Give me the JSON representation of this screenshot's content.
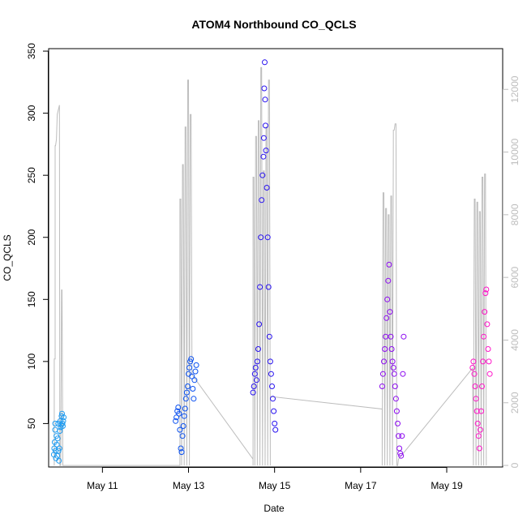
{
  "chart_data": {
    "type": "scatter",
    "title": "ATOM4 Northbound CO_QCLS",
    "xlabel": "Date",
    "ylabel": "CO_QCLS",
    "x_ticks": [
      "May 11",
      "May 13",
      "May 15",
      "May 17",
      "May 19"
    ],
    "x_tick_days": [
      11,
      13,
      15,
      17,
      19
    ],
    "xlim": [
      9.75,
      20.3
    ],
    "ylim": [
      15,
      352
    ],
    "y_ticks": [
      50,
      100,
      150,
      200,
      250,
      300,
      350
    ],
    "y2lim": [
      -50,
      13300
    ],
    "y2_ticks": [
      0,
      2000,
      4000,
      6000,
      8000,
      10000,
      12000
    ],
    "colors": {
      "flight1": "#1e9bf0",
      "flight2": "#0a50f0",
      "flight3": "#2812f0",
      "flight4": "#8c0af0",
      "flight5": "#ff14c8",
      "altitude": "#bdbdbd"
    },
    "series": [
      {
        "flight": 1,
        "color_key": "flight1",
        "points": [
          [
            9.87,
            25
          ],
          [
            9.88,
            30
          ],
          [
            9.89,
            35
          ],
          [
            9.9,
            45
          ],
          [
            9.9,
            50
          ],
          [
            9.91,
            28
          ],
          [
            9.92,
            22
          ],
          [
            9.93,
            40
          ],
          [
            9.94,
            33
          ],
          [
            9.95,
            24
          ],
          [
            9.96,
            38
          ],
          [
            9.97,
            50
          ],
          [
            9.98,
            28
          ],
          [
            9.99,
            20
          ],
          [
            10.0,
            30
          ],
          [
            10.01,
            44
          ],
          [
            10.02,
            52
          ],
          [
            10.03,
            47
          ],
          [
            10.04,
            49
          ],
          [
            10.05,
            56
          ],
          [
            10.06,
            58
          ],
          [
            10.07,
            50
          ],
          [
            10.08,
            48
          ],
          [
            10.09,
            52
          ],
          [
            10.1,
            55
          ]
        ]
      },
      {
        "flight": 2,
        "color_key": "flight2",
        "points": [
          [
            12.7,
            52
          ],
          [
            12.72,
            55
          ],
          [
            12.74,
            60
          ],
          [
            12.76,
            63
          ],
          [
            12.78,
            58
          ],
          [
            12.8,
            45
          ],
          [
            12.82,
            30
          ],
          [
            12.84,
            27
          ],
          [
            12.86,
            40
          ],
          [
            12.88,
            48
          ],
          [
            12.9,
            56
          ],
          [
            12.92,
            62
          ],
          [
            12.94,
            70
          ],
          [
            12.96,
            75
          ],
          [
            12.98,
            80
          ],
          [
            13.0,
            90
          ],
          [
            13.02,
            95
          ],
          [
            13.04,
            100
          ],
          [
            13.06,
            102
          ],
          [
            13.08,
            88
          ],
          [
            13.1,
            78
          ],
          [
            13.12,
            70
          ],
          [
            13.14,
            85
          ],
          [
            13.16,
            92
          ],
          [
            13.18,
            97
          ]
        ]
      },
      {
        "flight": 3,
        "color_key": "flight3",
        "points": [
          [
            14.5,
            75
          ],
          [
            14.52,
            80
          ],
          [
            14.54,
            90
          ],
          [
            14.56,
            95
          ],
          [
            14.58,
            85
          ],
          [
            14.6,
            100
          ],
          [
            14.62,
            110
          ],
          [
            14.64,
            130
          ],
          [
            14.66,
            160
          ],
          [
            14.68,
            200
          ],
          [
            14.7,
            230
          ],
          [
            14.72,
            250
          ],
          [
            14.74,
            265
          ],
          [
            14.75,
            280
          ],
          [
            14.76,
            320
          ],
          [
            14.77,
            341
          ],
          [
            14.78,
            311
          ],
          [
            14.79,
            290
          ],
          [
            14.8,
            270
          ],
          [
            14.82,
            240
          ],
          [
            14.84,
            200
          ],
          [
            14.86,
            160
          ],
          [
            14.88,
            120
          ],
          [
            14.9,
            100
          ],
          [
            14.92,
            90
          ],
          [
            14.94,
            80
          ],
          [
            14.96,
            70
          ],
          [
            14.98,
            60
          ],
          [
            15.0,
            50
          ],
          [
            15.02,
            45
          ]
        ]
      },
      {
        "flight": 4,
        "color_key": "flight4",
        "points": [
          [
            17.5,
            80
          ],
          [
            17.52,
            90
          ],
          [
            17.54,
            100
          ],
          [
            17.56,
            110
          ],
          [
            17.58,
            120
          ],
          [
            17.6,
            135
          ],
          [
            17.62,
            150
          ],
          [
            17.64,
            165
          ],
          [
            17.66,
            178
          ],
          [
            17.68,
            140
          ],
          [
            17.7,
            120
          ],
          [
            17.72,
            110
          ],
          [
            17.74,
            100
          ],
          [
            17.76,
            95
          ],
          [
            17.78,
            90
          ],
          [
            17.8,
            80
          ],
          [
            17.82,
            70
          ],
          [
            17.84,
            60
          ],
          [
            17.86,
            50
          ],
          [
            17.88,
            40
          ],
          [
            17.9,
            30
          ],
          [
            17.92,
            26
          ],
          [
            17.94,
            24
          ],
          [
            17.96,
            40
          ],
          [
            17.98,
            90
          ],
          [
            18.0,
            120
          ]
        ]
      },
      {
        "flight": 5,
        "color_key": "flight5",
        "points": [
          [
            19.6,
            95
          ],
          [
            19.62,
            100
          ],
          [
            19.64,
            90
          ],
          [
            19.66,
            80
          ],
          [
            19.68,
            70
          ],
          [
            19.7,
            60
          ],
          [
            19.72,
            50
          ],
          [
            19.74,
            40
          ],
          [
            19.76,
            30
          ],
          [
            19.78,
            45
          ],
          [
            19.8,
            60
          ],
          [
            19.82,
            80
          ],
          [
            19.84,
            100
          ],
          [
            19.86,
            120
          ],
          [
            19.88,
            140
          ],
          [
            19.9,
            155
          ],
          [
            19.92,
            158
          ],
          [
            19.94,
            130
          ],
          [
            19.96,
            110
          ],
          [
            19.98,
            100
          ],
          [
            20.0,
            90
          ]
        ]
      }
    ],
    "altitude_series": {
      "name": "",
      "color_key": "altitude",
      "points": [
        [
          9.88,
          0
        ],
        [
          9.88,
          3400
        ],
        [
          9.9,
          3400
        ],
        [
          9.9,
          10200
        ],
        [
          9.91,
          10200
        ],
        [
          9.93,
          10400
        ],
        [
          9.95,
          11200
        ],
        [
          10.0,
          11500
        ],
        [
          10.01,
          0
        ],
        [
          10.03,
          0
        ],
        [
          10.05,
          5600
        ],
        [
          10.06,
          5600
        ],
        [
          10.08,
          0
        ],
        [
          12.8,
          0
        ],
        [
          12.8,
          8500
        ],
        [
          12.82,
          8500
        ],
        [
          12.84,
          0
        ],
        [
          12.86,
          9600
        ],
        [
          12.88,
          9600
        ],
        [
          12.9,
          0
        ],
        [
          12.92,
          10800
        ],
        [
          12.94,
          10800
        ],
        [
          12.96,
          0
        ],
        [
          12.98,
          12300
        ],
        [
          13.0,
          12300
        ],
        [
          13.02,
          0
        ],
        [
          13.04,
          11200
        ],
        [
          13.06,
          11200
        ],
        [
          13.08,
          2900
        ],
        [
          14.5,
          200
        ],
        [
          14.5,
          0
        ],
        [
          14.5,
          9200
        ],
        [
          14.52,
          9200
        ],
        [
          14.54,
          0
        ],
        [
          14.56,
          10500
        ],
        [
          14.58,
          10500
        ],
        [
          14.6,
          0
        ],
        [
          14.62,
          11000
        ],
        [
          14.64,
          11000
        ],
        [
          14.66,
          0
        ],
        [
          14.68,
          12700
        ],
        [
          14.7,
          12700
        ],
        [
          14.72,
          0
        ],
        [
          14.74,
          9400
        ],
        [
          14.76,
          9400
        ],
        [
          14.78,
          0
        ],
        [
          14.8,
          10800
        ],
        [
          14.82,
          10800
        ],
        [
          14.84,
          0
        ],
        [
          14.86,
          12300
        ],
        [
          14.88,
          12300
        ],
        [
          14.9,
          0
        ],
        [
          14.9,
          2200
        ],
        [
          17.5,
          1800
        ],
        [
          17.5,
          0
        ],
        [
          17.52,
          8700
        ],
        [
          17.54,
          8700
        ],
        [
          17.56,
          0
        ],
        [
          17.58,
          8200
        ],
        [
          17.6,
          8200
        ],
        [
          17.62,
          0
        ],
        [
          17.64,
          8000
        ],
        [
          17.66,
          8000
        ],
        [
          17.68,
          0
        ],
        [
          17.7,
          8600
        ],
        [
          17.72,
          8600
        ],
        [
          17.74,
          0
        ],
        [
          17.76,
          10700
        ],
        [
          17.78,
          10700
        ],
        [
          17.8,
          10900
        ],
        [
          17.82,
          10900
        ],
        [
          17.84,
          0
        ],
        [
          17.86,
          0
        ],
        [
          17.88,
          200
        ],
        [
          19.6,
          3100
        ],
        [
          19.62,
          0
        ],
        [
          19.64,
          8500
        ],
        [
          19.66,
          8500
        ],
        [
          19.68,
          0
        ],
        [
          19.7,
          8400
        ],
        [
          19.72,
          8400
        ],
        [
          19.74,
          0
        ],
        [
          19.76,
          8100
        ],
        [
          19.78,
          8100
        ],
        [
          19.8,
          0
        ],
        [
          19.82,
          9200
        ],
        [
          19.84,
          9200
        ],
        [
          19.86,
          0
        ],
        [
          19.88,
          9300
        ],
        [
          19.9,
          9300
        ],
        [
          19.92,
          0
        ]
      ]
    }
  }
}
